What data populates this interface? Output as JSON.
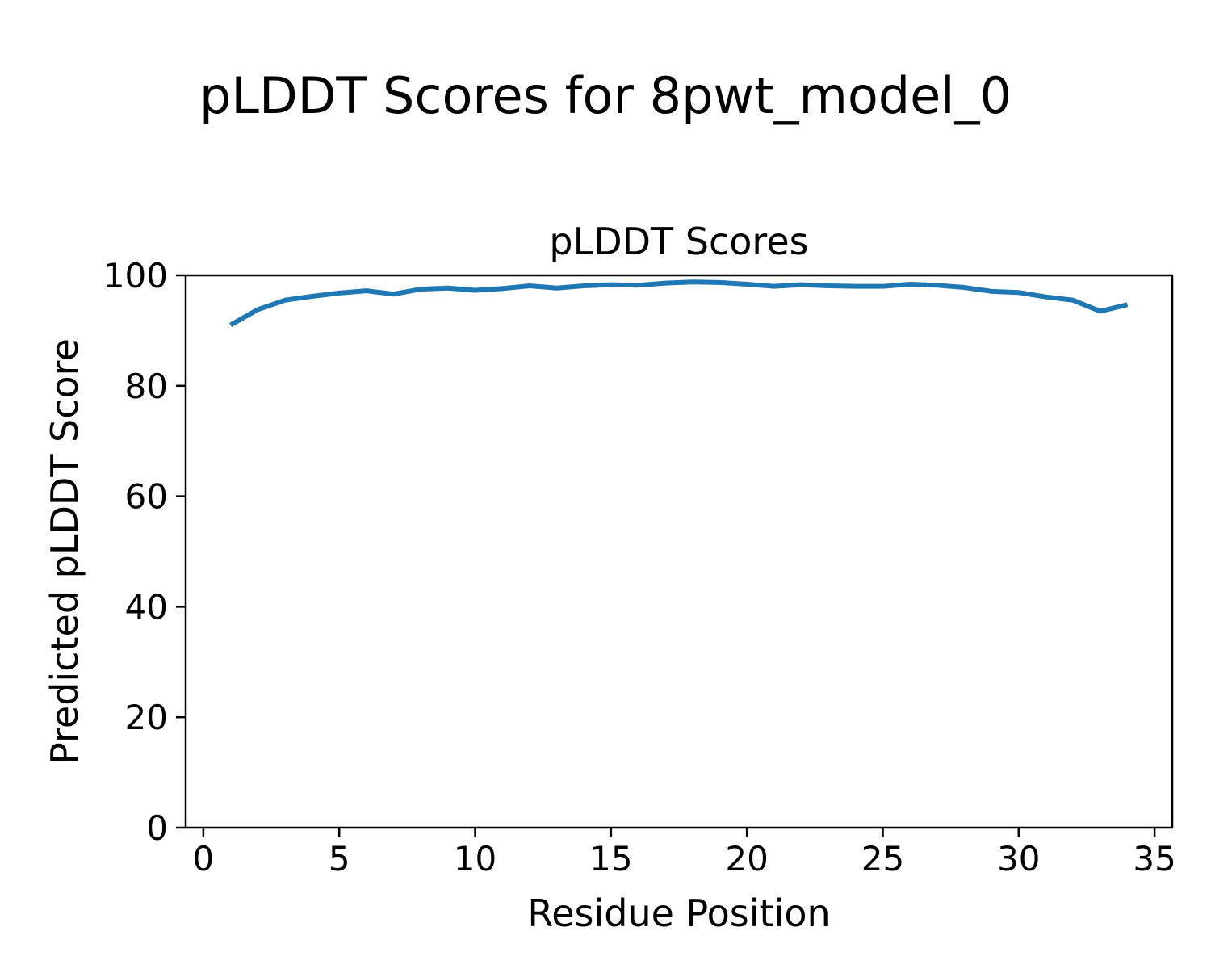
{
  "figure": {
    "title": "pLDDT Scores for 8pwt_model_0",
    "background_color": "#ffffff",
    "text_color": "#000000"
  },
  "chart_data": {
    "type": "line",
    "title": "pLDDT Scores",
    "xlabel": "Residue Position",
    "ylabel": "Predicted pLDDT Score",
    "x": [
      1,
      2,
      3,
      4,
      5,
      6,
      7,
      8,
      9,
      10,
      11,
      12,
      13,
      14,
      15,
      16,
      17,
      18,
      19,
      20,
      21,
      22,
      23,
      24,
      25,
      26,
      27,
      28,
      29,
      30,
      31,
      32,
      33,
      34
    ],
    "series": [
      {
        "name": "pLDDT",
        "color": "#1f77b4",
        "values": [
          91.0,
          93.8,
          95.5,
          96.2,
          96.8,
          97.2,
          96.6,
          97.5,
          97.7,
          97.3,
          97.6,
          98.1,
          97.7,
          98.1,
          98.3,
          98.2,
          98.6,
          98.8,
          98.7,
          98.4,
          98.0,
          98.3,
          98.1,
          98.0,
          98.0,
          98.4,
          98.2,
          97.8,
          97.1,
          96.9,
          96.1,
          95.5,
          93.5,
          94.7
        ]
      }
    ],
    "xlim": [
      -0.65,
      35.65
    ],
    "ylim": [
      0,
      100
    ],
    "x_ticks": [
      0,
      5,
      10,
      15,
      20,
      25,
      30,
      35
    ],
    "y_ticks": [
      0,
      20,
      40,
      60,
      80,
      100
    ],
    "grid": false,
    "legend": "none"
  }
}
